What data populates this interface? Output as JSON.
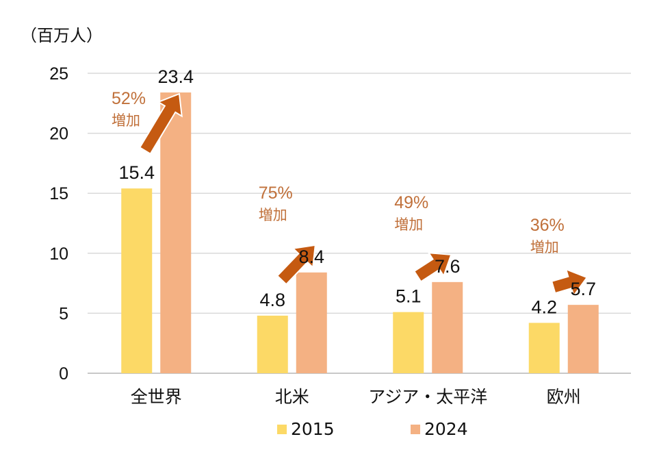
{
  "chart_data": {
    "type": "bar",
    "title": "",
    "unit_label": "（百万人）",
    "xlabel": "",
    "ylabel": "（百万人）",
    "ylim": [
      0,
      25
    ],
    "yticks": [
      0,
      5,
      10,
      15,
      20,
      25
    ],
    "grid": true,
    "categories": [
      "全世界",
      "北米",
      "アジア・太平洋",
      "欧州"
    ],
    "series": [
      {
        "name": "2015",
        "color": "#FCD966",
        "values": [
          15.4,
          4.8,
          5.1,
          4.2
        ],
        "labels": [
          "15.4",
          "4.8",
          "5.1",
          "4.2"
        ]
      },
      {
        "name": "2024",
        "color": "#F4B183",
        "values": [
          23.4,
          8.4,
          7.6,
          5.7
        ],
        "labels": [
          "23.4",
          "8.4",
          "7.6",
          "5.7"
        ]
      }
    ],
    "annotations": [
      {
        "category": "全世界",
        "percent": "52%",
        "text": "増加"
      },
      {
        "category": "北米",
        "percent": "75%",
        "text": "増加"
      },
      {
        "category": "アジア・太平洋",
        "percent": "49%",
        "text": "増加"
      },
      {
        "category": "欧州",
        "percent": "36%",
        "text": "増加"
      }
    ],
    "annotation_color": "#C55A11",
    "annotation_text_color": "#C0703A",
    "legend_position": "bottom"
  }
}
